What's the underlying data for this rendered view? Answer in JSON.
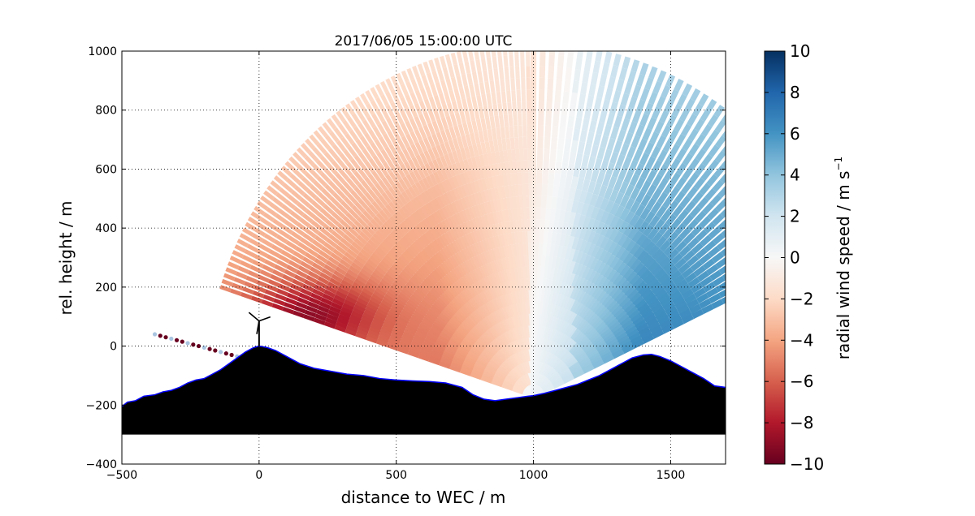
{
  "chart_data": {
    "type": "heatmap",
    "title": "2017/06/05 15:00:00 UTC",
    "xlabel": "distance to WEC / m",
    "ylabel": "rel. height / m",
    "xlim": [
      -500,
      1700
    ],
    "ylim": [
      -400,
      1000
    ],
    "xticks": [
      -500,
      0,
      500,
      1000,
      1500
    ],
    "yticks": [
      -400,
      -200,
      0,
      200,
      400,
      600,
      800,
      1000
    ],
    "grid": true,
    "colorbar": {
      "label": "radial wind speed / m s",
      "label_superscript": "−1",
      "range": [
        -10,
        10
      ],
      "ticks": [
        -10,
        -8,
        -6,
        -4,
        -2,
        0,
        2,
        4,
        6,
        8,
        10
      ],
      "colormap": "RdBu",
      "colors": [
        "#67001f",
        "#b2182b",
        "#d6604d",
        "#f4a582",
        "#fddbc7",
        "#f7f7f7",
        "#d1e5f0",
        "#92c5de",
        "#4393c3",
        "#2166ac",
        "#053061"
      ]
    },
    "scan": {
      "lidar_position": [
        1000,
        -170
      ],
      "azimuth_range_deg": [
        90,
        162
      ],
      "beam_count": 72,
      "max_range": 1200,
      "velocity_regions": [
        {
          "region": "near turbine wake, 0–300 m, 50–200 m height",
          "speed": -8
        },
        {
          "region": "upwind sector, x < 900 m",
          "speed": -4
        },
        {
          "region": "above lidar, x ≈ 1000 m",
          "speed": 0
        },
        {
          "region": "downwind sector, x > 1100 m",
          "speed": 5
        }
      ]
    },
    "terrain": {
      "fill_color": "#000000",
      "outline_color": "#0000ff",
      "base": -300,
      "profile": [
        [
          -500,
          -205
        ],
        [
          -480,
          -190
        ],
        [
          -450,
          -185
        ],
        [
          -420,
          -170
        ],
        [
          -380,
          -165
        ],
        [
          -350,
          -155
        ],
        [
          -320,
          -150
        ],
        [
          -290,
          -140
        ],
        [
          -260,
          -125
        ],
        [
          -230,
          -115
        ],
        [
          -200,
          -110
        ],
        [
          -170,
          -95
        ],
        [
          -140,
          -80
        ],
        [
          -110,
          -60
        ],
        [
          -80,
          -40
        ],
        [
          -50,
          -20
        ],
        [
          -20,
          -5
        ],
        [
          0,
          0
        ],
        [
          30,
          -5
        ],
        [
          60,
          -15
        ],
        [
          100,
          -35
        ],
        [
          150,
          -60
        ],
        [
          200,
          -75
        ],
        [
          260,
          -85
        ],
        [
          320,
          -95
        ],
        [
          380,
          -100
        ],
        [
          440,
          -110
        ],
        [
          500,
          -115
        ],
        [
          560,
          -118
        ],
        [
          620,
          -120
        ],
        [
          680,
          -125
        ],
        [
          740,
          -140
        ],
        [
          780,
          -165
        ],
        [
          820,
          -180
        ],
        [
          860,
          -185
        ],
        [
          900,
          -180
        ],
        [
          940,
          -175
        ],
        [
          980,
          -170
        ],
        [
          1000,
          -168
        ],
        [
          1040,
          -160
        ],
        [
          1080,
          -150
        ],
        [
          1120,
          -140
        ],
        [
          1160,
          -130
        ],
        [
          1200,
          -115
        ],
        [
          1240,
          -100
        ],
        [
          1280,
          -80
        ],
        [
          1320,
          -60
        ],
        [
          1360,
          -40
        ],
        [
          1400,
          -30
        ],
        [
          1430,
          -28
        ],
        [
          1460,
          -35
        ],
        [
          1500,
          -50
        ],
        [
          1540,
          -70
        ],
        [
          1580,
          -90
        ],
        [
          1620,
          -110
        ],
        [
          1660,
          -135
        ],
        [
          1700,
          -140
        ]
      ]
    },
    "turbine": {
      "x": 0,
      "hub_height": 85,
      "rotor_radius": 45
    }
  }
}
